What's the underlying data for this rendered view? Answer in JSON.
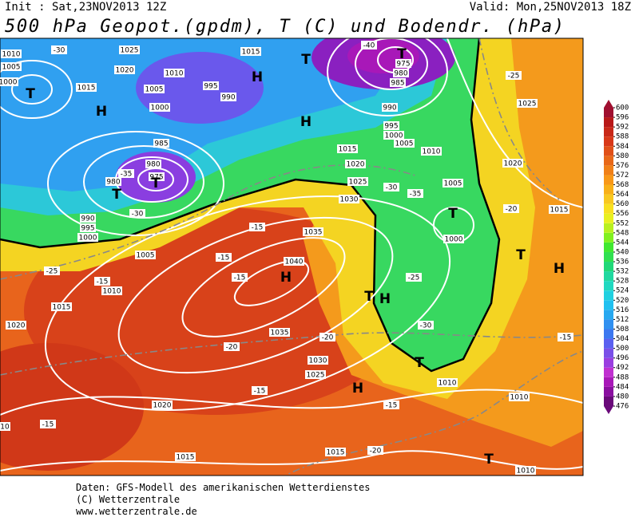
{
  "header": {
    "init": "Init : Sat,23NOV2013 12Z",
    "valid": "Valid: Mon,25NOV2013 18Z",
    "title": "500 hPa Geopot.(gpdm), T (C) und Bodendr. (hPa)"
  },
  "map": {
    "labels": [
      "1010",
      "1005",
      "1000",
      "T",
      "-30",
      "1025",
      "1020",
      "1015",
      "1010",
      "1005",
      "1000",
      "995",
      "990",
      "985",
      "980",
      "975",
      "T",
      "980",
      "T",
      "-35",
      "1015",
      "T",
      "H",
      "975",
      "980",
      "985",
      "T",
      "-40",
      "990",
      "995",
      "1000",
      "1005",
      "1010",
      "1025",
      "-25",
      "H",
      "H",
      "1020",
      "-20",
      "T",
      "1000",
      "1005",
      "1040",
      "H",
      "1035",
      "1030",
      "1025",
      "1020",
      "1015",
      "-35",
      "-30",
      "H",
      "T",
      "T",
      "H",
      "-25",
      "1035",
      "1030",
      "1025",
      "H",
      "T",
      "-30",
      "1020",
      "1015",
      "1015",
      "1010",
      "1010",
      "1010",
      "T",
      "1015",
      "-15",
      "1020",
      "1015",
      "1010",
      "1005",
      "1000",
      "995",
      "990",
      "-20",
      "-15",
      "-15",
      "-15",
      "-20",
      "-15",
      "-15",
      "-15",
      "-15",
      "-25",
      "-30",
      "-20",
      "10"
    ]
  },
  "colorbar": {
    "ticks": [
      476,
      480,
      484,
      488,
      492,
      496,
      500,
      504,
      508,
      512,
      516,
      520,
      524,
      528,
      532,
      536,
      540,
      544,
      548,
      552,
      556,
      560,
      564,
      568,
      572,
      576,
      580,
      584,
      588,
      592,
      596,
      600
    ],
    "colors": [
      "#6a0a7a",
      "#8a0fa0",
      "#a818b8",
      "#c030d0",
      "#9a3ee0",
      "#7a50e8",
      "#5a60f0",
      "#3c78f0",
      "#3090f0",
      "#28a8f0",
      "#20c0f0",
      "#20d0e0",
      "#20d8c0",
      "#20d8a0",
      "#20d878",
      "#30e050",
      "#40e830",
      "#80f020",
      "#b8f020",
      "#e8f020",
      "#f8e020",
      "#f8c820",
      "#f8b018",
      "#f89818",
      "#f08018",
      "#e86818",
      "#e05018",
      "#d83818",
      "#c82818",
      "#b81818",
      "#a01030"
    ]
  },
  "footer": {
    "lines": [
      "Daten: GFS-Modell des amerikanischen Wetterdienstes",
      "(C) Wetterzentrale",
      "www.wetterzentrale.de"
    ]
  }
}
